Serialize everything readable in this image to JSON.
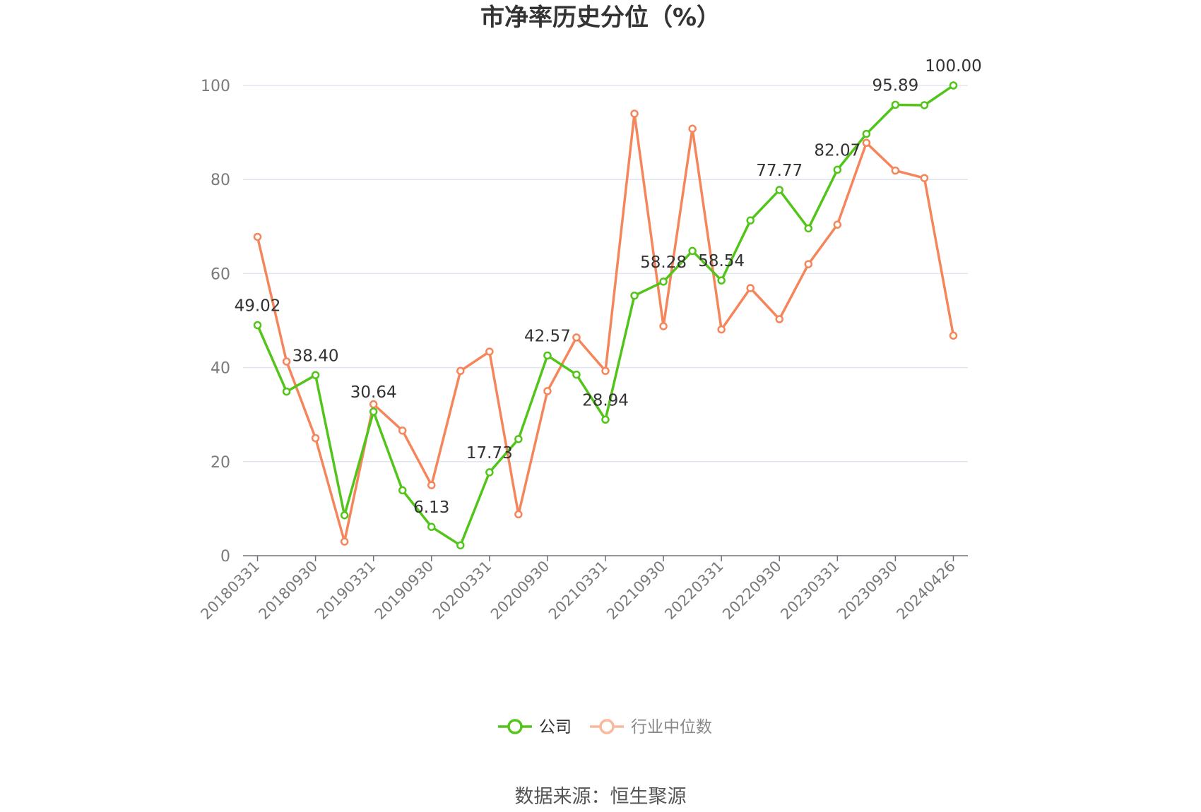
{
  "chart_data": {
    "type": "line",
    "title": "市净率历史分位（%）",
    "source": "数据来源：恒生聚源",
    "ylim": [
      0,
      100
    ],
    "yticks": [
      0,
      20,
      40,
      60,
      80,
      100
    ],
    "grid": true,
    "legend_position": "bottom",
    "x_tick_labels": [
      "20180331",
      "20180930",
      "20190331",
      "20190930",
      "20200331",
      "20200930",
      "20210331",
      "20210930",
      "20220331",
      "20220930",
      "20230331",
      "20230930",
      "20240426"
    ],
    "x": [
      "20180331",
      "20180630",
      "20180930",
      "20181231",
      "20190331",
      "20190630",
      "20190930",
      "20191231",
      "20200331",
      "20200630",
      "20200930",
      "20201231",
      "20210331",
      "20210630",
      "20210930",
      "20211231",
      "20220331",
      "20220630",
      "20220930",
      "20221231",
      "20230331",
      "20230630",
      "20230930",
      "20231231",
      "20240426"
    ],
    "series": [
      {
        "name": "公司",
        "color": "#52c41a",
        "values": [
          49.02,
          34.9,
          38.4,
          8.6,
          30.64,
          13.9,
          6.13,
          2.2,
          17.73,
          24.8,
          42.57,
          38.5,
          28.94,
          55.3,
          58.28,
          64.8,
          58.54,
          71.3,
          77.77,
          69.6,
          82.07,
          89.7,
          95.89,
          95.8,
          100.0
        ],
        "labels": [
          "49.02",
          "",
          "38.40",
          "",
          "30.64",
          "",
          "6.13",
          "",
          "17.73",
          "",
          "42.57",
          "",
          "28.94",
          "",
          "58.28",
          "",
          "58.54",
          "",
          "77.77",
          "",
          "82.07",
          "",
          "95.89",
          "",
          "100.00"
        ]
      },
      {
        "name": "行业中位数",
        "color": "#f5855a",
        "values": [
          67.8,
          41.3,
          25.0,
          3.0,
          32.2,
          26.6,
          15.0,
          39.3,
          43.4,
          8.8,
          35.0,
          46.4,
          39.3,
          94.0,
          48.8,
          90.8,
          48.1,
          56.9,
          50.3,
          62.0,
          70.4,
          87.8,
          81.9,
          80.3,
          46.8
        ]
      }
    ]
  }
}
